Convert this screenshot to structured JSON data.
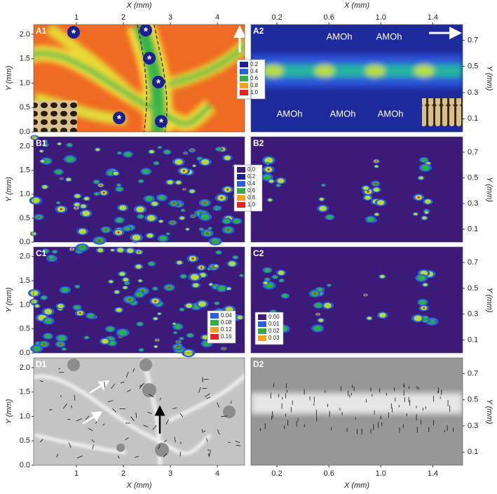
{
  "chart_data": [
    {
      "type": "heatmap",
      "label": "A1",
      "xlim": [
        0.09,
        4.58
      ],
      "ylim": [
        0,
        2.2
      ],
      "x_side": "top",
      "xticks": [
        1,
        2,
        3,
        4
      ],
      "xlabel": "X (mm)",
      "y_side": "left",
      "yticks": [
        {
          "value": 0,
          "label": "0.0"
        },
        {
          "value": 0.5,
          "label": "0.5"
        },
        {
          "value": 1,
          "label": "1.0"
        },
        {
          "value": 1.5,
          "label": "1.5"
        },
        {
          "value": 2,
          "label": "2.0"
        }
      ],
      "ylabel": "Y (mm)",
      "annotations": [
        "*",
        "*",
        "*",
        "*",
        "*",
        "*"
      ],
      "colorbar": {
        "ticks": [
          0.2,
          0.4,
          0.6,
          0.8,
          {
            "value": 1,
            "label": "1.0"
          }
        ],
        "colors": [
          "#1b1f8f",
          "#2c5fe0",
          "#2db04a",
          "#f2a22a",
          "#e2261b"
        ]
      }
    },
    {
      "type": "heatmap",
      "label": "A2",
      "xlim": [
        0,
        1.63
      ],
      "ylim": [
        0,
        0.82
      ],
      "x_side": "top",
      "xticks": [
        0.2,
        0.6,
        {
          "value": 1,
          "label": "1.0"
        },
        1.4
      ],
      "xlabel": "X (mm)",
      "y_side": "right",
      "yticks": [
        0.1,
        0.3,
        0.5,
        0.7
      ],
      "ylabel": "Y (mm)",
      "annotations": [
        "AMOh",
        "AMOh",
        "AMOh",
        "AMOh",
        "AMOh"
      ]
    },
    {
      "type": "heatmap",
      "label": "B1",
      "xlim": [
        0.09,
        4.58
      ],
      "ylim": [
        0,
        2.2
      ],
      "y_side": "left",
      "yticks": [
        {
          "value": 0,
          "label": "0.0"
        },
        {
          "value": 0.5,
          "label": "0.5"
        },
        {
          "value": 1,
          "label": "1.0"
        },
        {
          "value": 1.5,
          "label": "1.5"
        },
        {
          "value": 2,
          "label": "2.0"
        }
      ],
      "ylabel": "Y (mm)",
      "colorbar": {
        "ticks": [
          {
            "value": 0,
            "label": "0.0"
          },
          0.2,
          0.4,
          0.6,
          0.8,
          {
            "value": 1,
            "label": "1.0"
          }
        ],
        "colors": [
          "#3b1a78",
          "#1b1f8f",
          "#2c5fe0",
          "#2db04a",
          "#f2a22a",
          "#e2261b"
        ]
      }
    },
    {
      "type": "heatmap",
      "label": "B2",
      "xlim": [
        0,
        1.63
      ],
      "ylim": [
        0,
        0.82
      ],
      "y_side": "right",
      "yticks": [
        0.1,
        0.3,
        0.5,
        0.7
      ],
      "ylabel": "Y (mm)"
    },
    {
      "type": "heatmap",
      "label": "C1",
      "xlim": [
        0.09,
        4.58
      ],
      "ylim": [
        0,
        2.2
      ],
      "y_side": "left",
      "yticks": [
        {
          "value": 0,
          "label": "0.0"
        },
        {
          "value": 0.5,
          "label": "0.5"
        },
        {
          "value": 1,
          "label": "1.0"
        },
        {
          "value": 1.5,
          "label": "1.5"
        },
        {
          "value": 2,
          "label": "2.0"
        }
      ],
      "ylabel": "Y (mm)",
      "colorbar": {
        "ticks": [
          0.04,
          0.08,
          0.12,
          0.16
        ],
        "colors": [
          "#2c5fe0",
          "#2db04a",
          "#f2a22a",
          "#e2261b"
        ]
      }
    },
    {
      "type": "heatmap",
      "label": "C2",
      "xlim": [
        0,
        1.63
      ],
      "ylim": [
        0,
        0.82
      ],
      "y_side": "right",
      "yticks": [
        0.1,
        0.3,
        0.5,
        0.7
      ],
      "ylabel": "Y (mm)",
      "colorbar": {
        "ticks": [
          {
            "value": 0,
            "label": "0.00"
          },
          0.01,
          0.02,
          0.03
        ],
        "colors": [
          "#3b1a78",
          "#2c5fe0",
          "#2db04a",
          "#f2a22a"
        ]
      }
    },
    {
      "type": "heatmap",
      "label": "D1",
      "xlim": [
        0.09,
        4.58
      ],
      "ylim": [
        0,
        2.2
      ],
      "x_side": "bottom",
      "xticks": [
        1,
        2,
        3,
        4
      ],
      "xlabel": "X (mm)",
      "y_side": "left",
      "yticks": [
        {
          "value": 0,
          "label": "0.0"
        },
        {
          "value": 0.5,
          "label": "0.5"
        },
        {
          "value": 1,
          "label": "1.0"
        },
        {
          "value": 1.5,
          "label": "1.5"
        },
        {
          "value": 2,
          "label": "2.0"
        }
      ],
      "ylabel": "Y (mm)"
    },
    {
      "type": "heatmap",
      "label": "D2",
      "xlim": [
        0,
        1.63
      ],
      "ylim": [
        0,
        0.82
      ],
      "x_side": "bottom",
      "xticks": [
        0.2,
        0.6,
        {
          "value": 1,
          "label": "1.0"
        },
        1.4
      ],
      "xlabel": "X (mm)",
      "y_side": "right",
      "yticks": [
        0.1,
        0.3,
        0.5,
        0.7
      ],
      "ylabel": "Y (mm)"
    }
  ]
}
